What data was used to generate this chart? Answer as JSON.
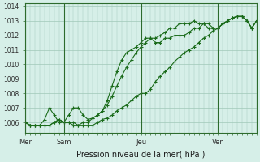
{
  "title": "",
  "xlabel": "Pression niveau de la mer( hPa )",
  "background_color": "#d6efe8",
  "grid_color": "#a0c8b8",
  "line_color": "#1a6b1a",
  "ylim": [
    1005.3,
    1014.2
  ],
  "yticks": [
    1006,
    1007,
    1008,
    1009,
    1010,
    1011,
    1012,
    1013,
    1014
  ],
  "day_positions": [
    0,
    48,
    144,
    240
  ],
  "day_labels": [
    "Mer",
    "Sam",
    "Jeu",
    "Ven"
  ],
  "series1_x": [
    0,
    6,
    12,
    18,
    24,
    30,
    36,
    42,
    48,
    54,
    60,
    66,
    72,
    78,
    84,
    90,
    96,
    102,
    108,
    114,
    120,
    126,
    132,
    138,
    144,
    150,
    156,
    162,
    168,
    174,
    180,
    186,
    192,
    198,
    204,
    210,
    216,
    222,
    228,
    234,
    240,
    246,
    252,
    258,
    264,
    270,
    276,
    282,
    288
  ],
  "series1_y": [
    1006.0,
    1005.8,
    1005.8,
    1005.8,
    1005.8,
    1005.8,
    1006.0,
    1006.2,
    1006.0,
    1006.0,
    1006.0,
    1005.8,
    1005.8,
    1005.8,
    1005.8,
    1006.0,
    1006.2,
    1006.3,
    1006.5,
    1006.8,
    1007.0,
    1007.2,
    1007.5,
    1007.8,
    1008.0,
    1008.0,
    1008.3,
    1008.8,
    1009.2,
    1009.5,
    1009.8,
    1010.2,
    1010.5,
    1010.8,
    1011.0,
    1011.2,
    1011.5,
    1011.8,
    1012.0,
    1012.3,
    1012.5,
    1012.8,
    1013.0,
    1013.2,
    1013.3,
    1013.3,
    1013.0,
    1012.5,
    1013.0
  ],
  "series2_x": [
    0,
    6,
    12,
    18,
    24,
    30,
    36,
    42,
    48,
    54,
    60,
    66,
    72,
    78,
    84,
    90,
    96,
    102,
    108,
    114,
    120,
    126,
    132,
    138,
    144,
    150,
    156,
    162,
    168,
    174,
    180,
    186,
    192,
    198,
    204,
    210,
    216,
    222,
    228,
    234,
    240,
    246,
    252,
    258,
    264,
    270,
    276,
    282,
    288
  ],
  "series2_y": [
    1006.0,
    1005.8,
    1005.8,
    1005.8,
    1006.2,
    1007.0,
    1006.5,
    1006.0,
    1006.0,
    1006.0,
    1005.8,
    1005.8,
    1006.0,
    1006.0,
    1006.3,
    1006.5,
    1006.8,
    1007.2,
    1007.8,
    1008.5,
    1009.2,
    1009.8,
    1010.3,
    1010.8,
    1011.2,
    1011.5,
    1011.8,
    1011.5,
    1011.5,
    1011.8,
    1011.8,
    1012.0,
    1012.0,
    1012.0,
    1012.2,
    1012.5,
    1012.5,
    1012.8,
    1012.5,
    1012.5,
    1012.5,
    1012.8,
    1013.0,
    1013.2,
    1013.3,
    1013.3,
    1013.0,
    1012.5,
    1013.0
  ],
  "series3_x": [
    0,
    6,
    12,
    18,
    24,
    30,
    36,
    42,
    48,
    54,
    60,
    66,
    72,
    78,
    84,
    90,
    96,
    102,
    108,
    114,
    120,
    126,
    132,
    138,
    144,
    150,
    156,
    162,
    168,
    174,
    180,
    186,
    192,
    198,
    204,
    210,
    216,
    222,
    228,
    234,
    240,
    246,
    252,
    258,
    264,
    270,
    276,
    282,
    288
  ],
  "series3_y": [
    1006.0,
    1005.8,
    1005.8,
    1005.8,
    1005.8,
    1005.8,
    1006.0,
    1006.2,
    1006.0,
    1006.5,
    1007.0,
    1007.0,
    1006.5,
    1006.2,
    1006.3,
    1006.5,
    1006.8,
    1007.5,
    1008.5,
    1009.5,
    1010.3,
    1010.8,
    1011.0,
    1011.2,
    1011.5,
    1011.8,
    1011.8,
    1011.8,
    1012.0,
    1012.2,
    1012.5,
    1012.5,
    1012.8,
    1012.8,
    1012.8,
    1013.0,
    1012.8,
    1012.8,
    1012.8,
    1012.5,
    1012.5,
    1012.8,
    1013.0,
    1013.2,
    1013.3,
    1013.3,
    1013.0,
    1012.5,
    1013.0
  ]
}
